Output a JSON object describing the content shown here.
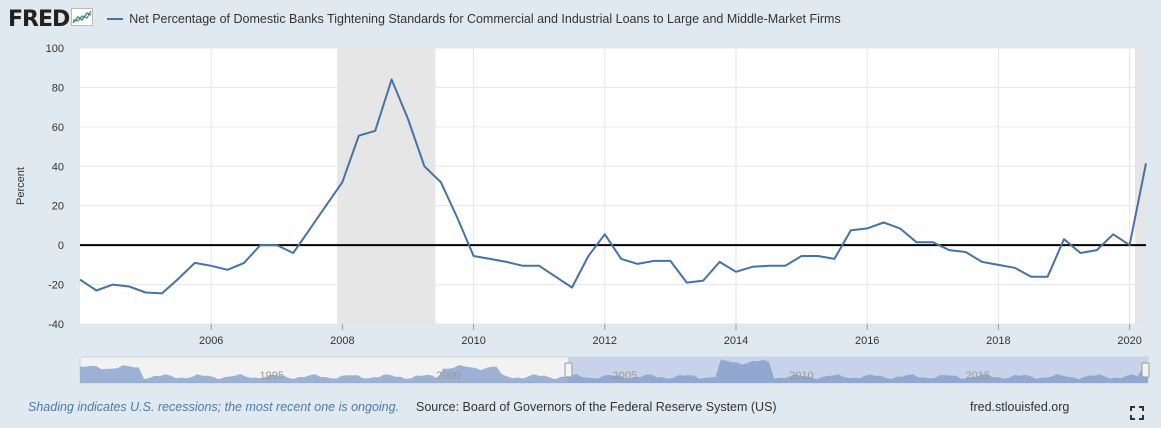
{
  "header": {
    "logo_text": "FRED",
    "logo_icon": "chart-line-icon",
    "series_title": "Net Percentage of Domestic Banks Tightening Standards for Commercial and Industrial Loans to Large and Middle-Market Firms",
    "series_color": "#4572a7"
  },
  "footer": {
    "note": "Shading indicates U.S. recessions; the most recent one is ongoing.",
    "source": "Source: Board of Governors of the Federal Reserve System (US)",
    "site": "fred.stlouisfed.org",
    "fullscreen_icon": "fullscreen-icon"
  },
  "navigator": {
    "labels": [
      "1995",
      "2000",
      "2005",
      "2010",
      "2015"
    ]
  },
  "chart_data": {
    "type": "line",
    "ylabel": "Percent",
    "ylim": [
      -40,
      100
    ],
    "yticks": [
      -40,
      -20,
      0,
      20,
      40,
      60,
      80,
      100
    ],
    "xlim": [
      2004.0,
      2020.25
    ],
    "xticks": [
      2006,
      2008,
      2010,
      2012,
      2014,
      2016,
      2018,
      2020
    ],
    "grid": true,
    "recessions": [
      [
        2007.92,
        2009.42
      ],
      [
        2020.08,
        2020.25
      ]
    ],
    "series": [
      {
        "x": [
          2004.0,
          2004.25,
          2004.5,
          2004.75,
          2005.0,
          2005.25,
          2005.5,
          2005.75,
          2006.0,
          2006.25,
          2006.5,
          2006.75,
          2007.0,
          2007.25,
          2007.5,
          2007.75,
          2008.0,
          2008.25,
          2008.5,
          2008.75,
          2009.0,
          2009.25,
          2009.5,
          2009.75,
          2010.0,
          2010.25,
          2010.5,
          2010.75,
          2011.0,
          2011.25,
          2011.5,
          2011.75,
          2012.0,
          2012.25,
          2012.5,
          2012.75,
          2013.0,
          2013.25,
          2013.5,
          2013.75,
          2014.0,
          2014.25,
          2014.5,
          2014.75,
          2015.0,
          2015.25,
          2015.5,
          2015.75,
          2016.0,
          2016.25,
          2016.5,
          2016.75,
          2017.0,
          2017.25,
          2017.5,
          2017.75,
          2018.0,
          2018.25,
          2018.5,
          2018.75,
          2019.0,
          2019.25,
          2019.5,
          2019.75,
          2020.0,
          2020.25
        ],
        "values": [
          -17.5,
          -23,
          -20,
          -21,
          -24,
          -24.5,
          -17,
          -9,
          -10.5,
          -12.5,
          -9,
          0,
          0,
          -4,
          8,
          20,
          32,
          55.5,
          58,
          84,
          64,
          40,
          32,
          14,
          -5.5,
          -7,
          -8.5,
          -10.5,
          -10.5,
          -16,
          -21.5,
          -5.5,
          5.5,
          -7,
          -9.5,
          -8,
          -8,
          -19,
          -18,
          -8.5,
          -13.5,
          -11,
          -10.5,
          -10.5,
          -5.5,
          -5.5,
          -7,
          7.5,
          8.5,
          11.5,
          8.5,
          1.5,
          1.5,
          -2.5,
          -3.5,
          -8.5,
          -10,
          -11.5,
          -16,
          -16,
          3,
          -4,
          -2.5,
          5.5,
          0,
          41.5
        ]
      }
    ]
  }
}
